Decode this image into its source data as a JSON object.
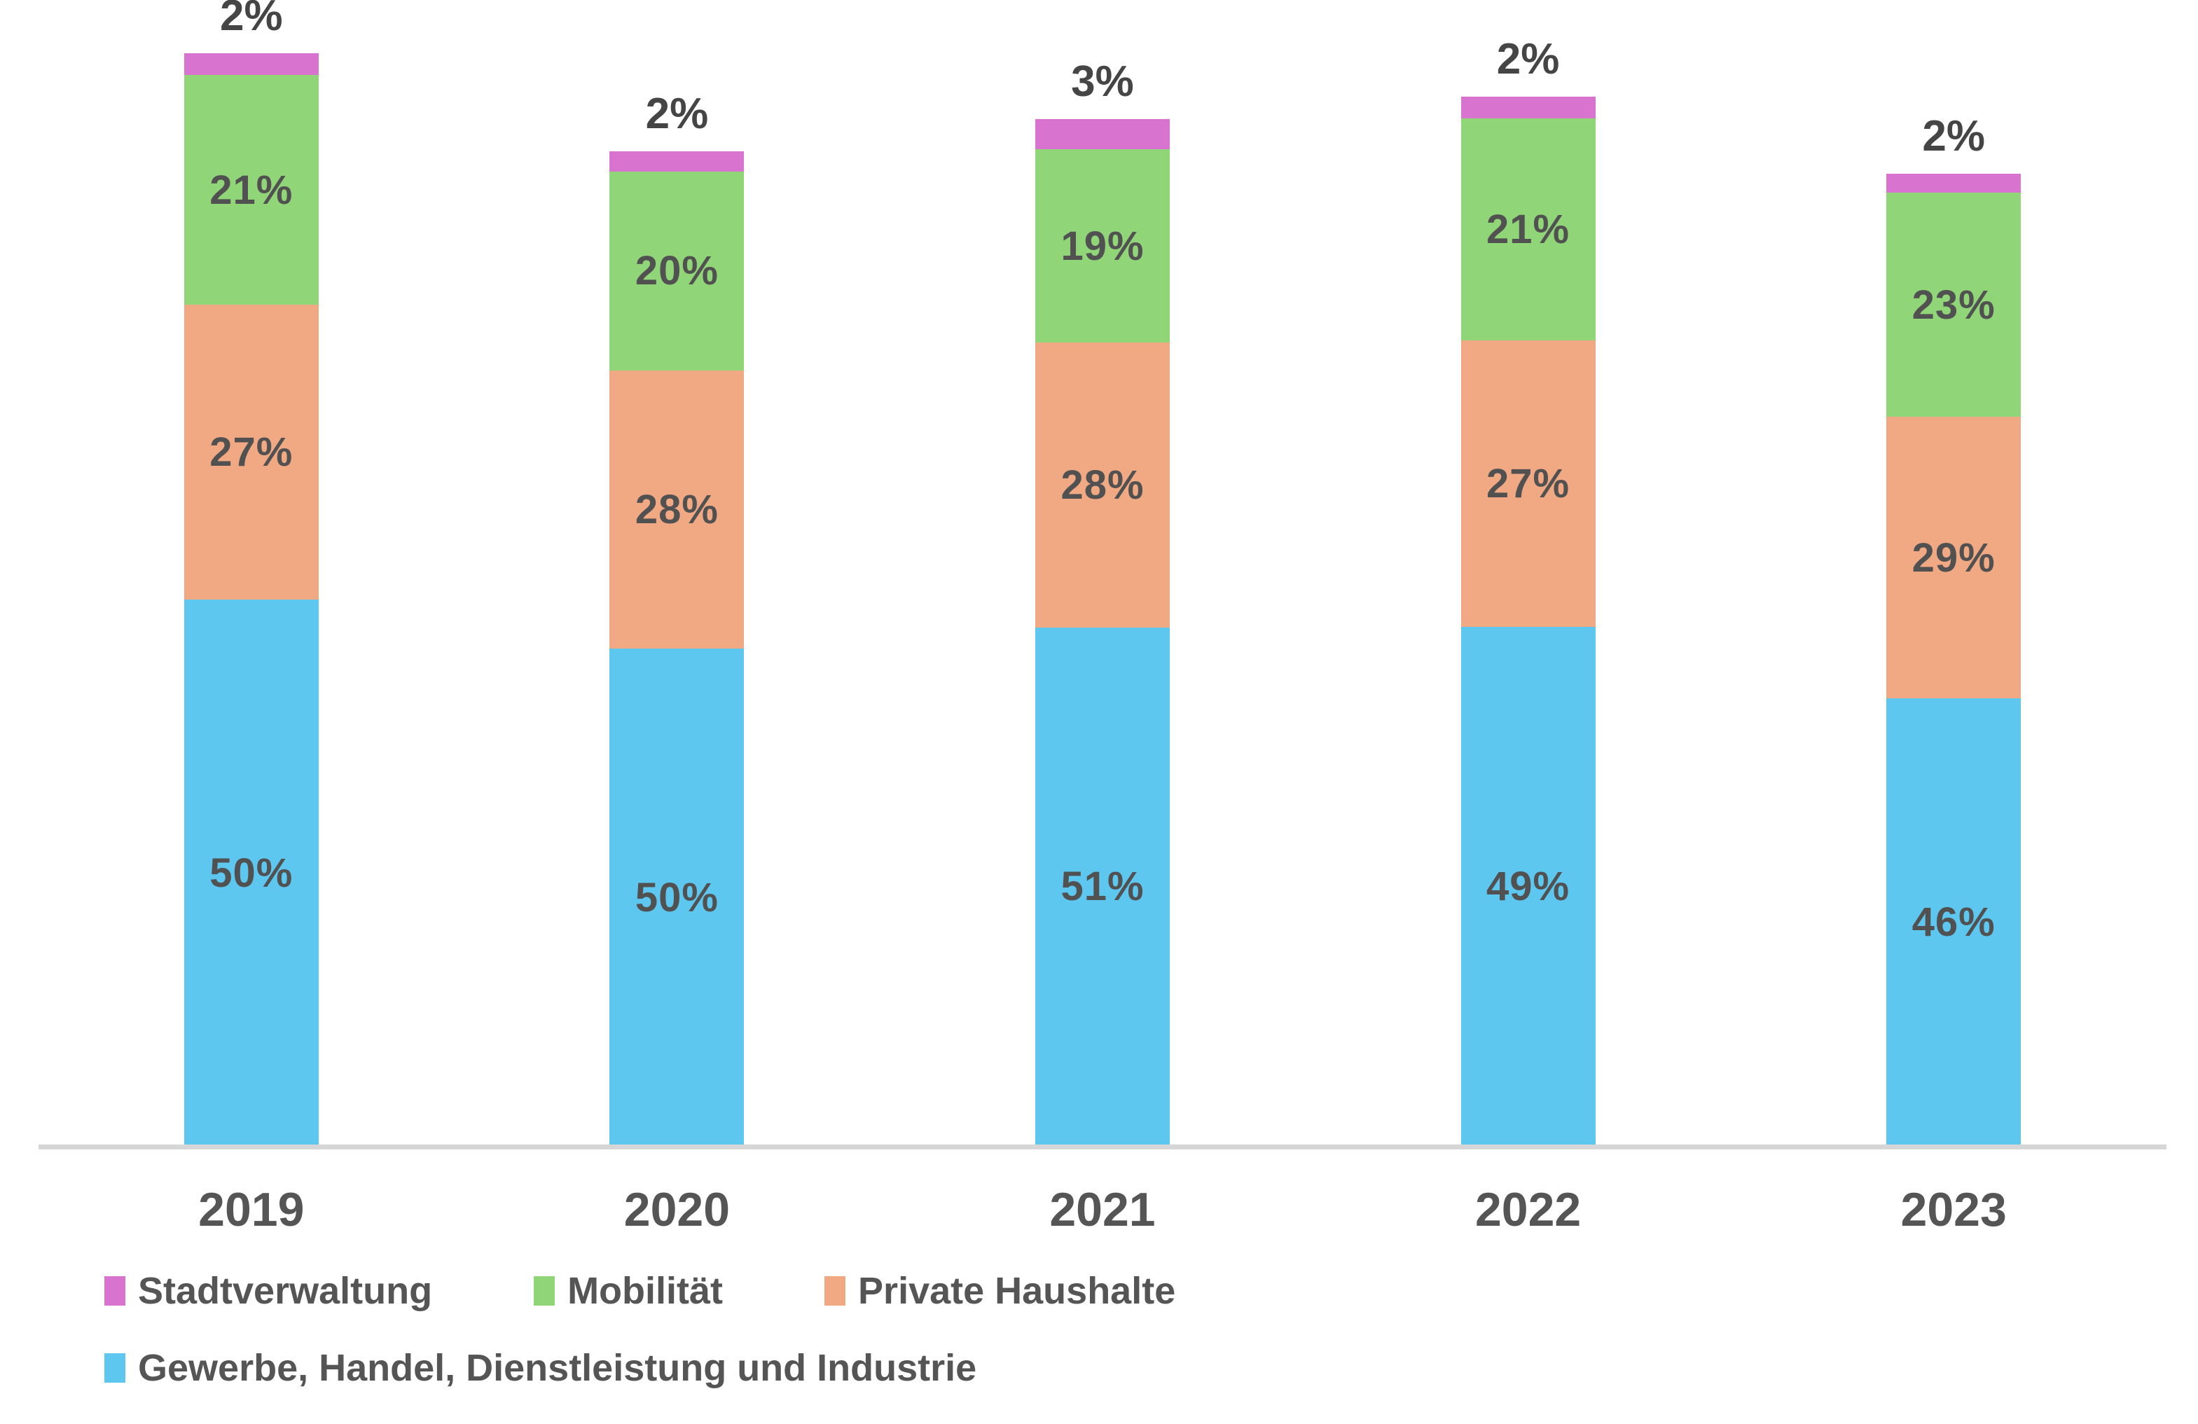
{
  "chart_data": {
    "type": "bar",
    "stacked": true,
    "orientation": "vertical",
    "title": "",
    "xlabel": "",
    "ylabel": "",
    "categories": [
      "2019",
      "2020",
      "2021",
      "2022",
      "2023"
    ],
    "series": [
      {
        "name": "Gewerbe, Handel, Dienstleistung und Industrie",
        "color": "#5ec7f0",
        "values": [
          50,
          50,
          51,
          49,
          46
        ],
        "labels": [
          "50%",
          "50%",
          "51%",
          "49%",
          "46%"
        ],
        "label_position": "inside"
      },
      {
        "name": "Private Haushalte",
        "color": "#f1a983",
        "values": [
          27,
          28,
          28,
          27,
          29
        ],
        "labels": [
          "27%",
          "28%",
          "28%",
          "27%",
          "29%"
        ],
        "label_position": "inside"
      },
      {
        "name": "Mobilität",
        "color": "#90d577",
        "values": [
          21,
          20,
          19,
          21,
          23
        ],
        "labels": [
          "21%",
          "20%",
          "19%",
          "21%",
          "23%"
        ],
        "label_position": "inside"
      },
      {
        "name": "Stadtverwaltung",
        "color": "#d873d0",
        "values": [
          2,
          2,
          3,
          2,
          2
        ],
        "labels": [
          "2%",
          "2%",
          "3%",
          "2%",
          "2%"
        ],
        "label_position": "above"
      }
    ],
    "relative_bar_totals": [
      1.0,
      0.91,
      0.94,
      0.96,
      0.89
    ],
    "value_unit": "%",
    "grid": false,
    "y_axis_visible": false,
    "x_axis_line_color": "#d6d6d6",
    "inside_label_color": "#515151",
    "above_label_color": "#454545",
    "category_label_color": "#555555",
    "background": "#ffffff",
    "legend_position": "bottom-left",
    "legend_rows": [
      [
        "Stadtverwaltung",
        "Mobilität",
        "Private Haushalte"
      ],
      [
        "Gewerbe, Handel, Dienstleistung und Industrie"
      ]
    ]
  }
}
